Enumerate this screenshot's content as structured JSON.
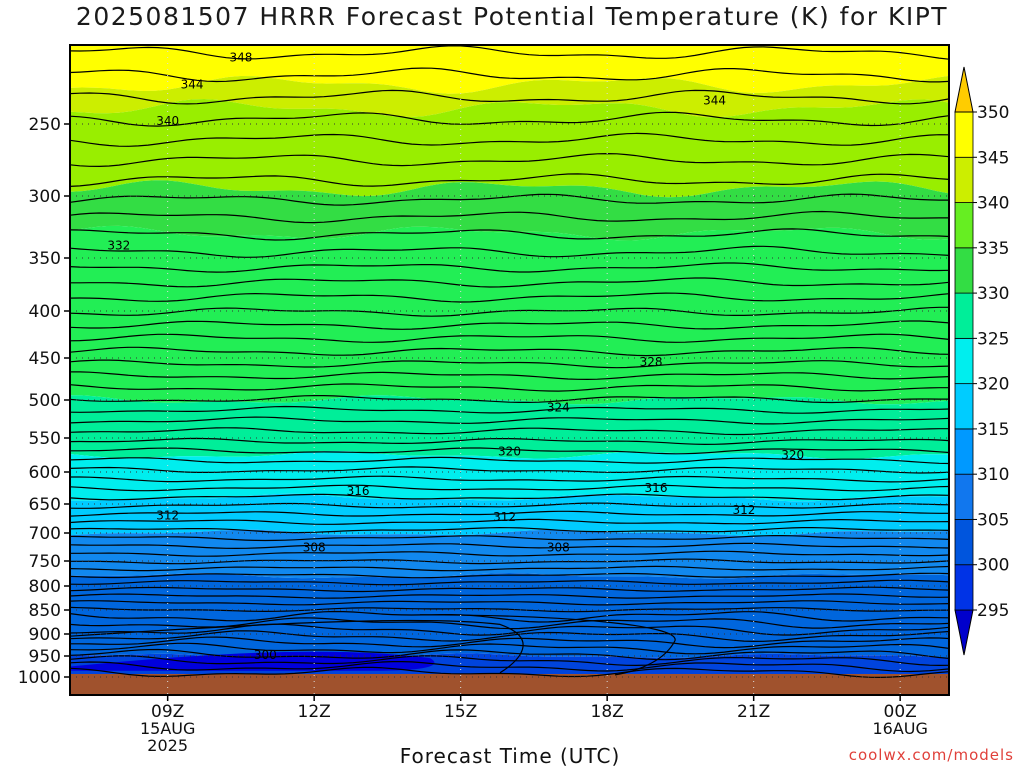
{
  "page": {
    "title": "2025081507 HRRR Forecast Potential Temperature (K) for KIPT",
    "xlabel": "Forecast Time (UTC)",
    "credit": "coolwx.com/models"
  },
  "chart_data": {
    "type": "heatmap",
    "title": "2025081507 HRRR Forecast Potential Temperature (K) for KIPT",
    "xlabel": "Forecast Time (UTC)",
    "ylabel": "",
    "x_range_hours": [
      7,
      25
    ],
    "y_range": [
      200,
      1000
    ],
    "y_ticks": [
      250,
      300,
      350,
      400,
      450,
      500,
      550,
      600,
      650,
      700,
      750,
      800,
      850,
      900,
      950,
      1000
    ],
    "x_ticks": [
      {
        "hour": 9,
        "lines": [
          "09Z",
          "15AUG",
          "2025"
        ]
      },
      {
        "hour": 12,
        "lines": [
          "12Z"
        ]
      },
      {
        "hour": 15,
        "lines": [
          "15Z"
        ]
      },
      {
        "hour": 18,
        "lines": [
          "18Z"
        ]
      },
      {
        "hour": 21,
        "lines": [
          "21Z"
        ]
      },
      {
        "hour": 24,
        "lines": [
          "00Z",
          "16AUG"
        ]
      }
    ],
    "colorbar": {
      "levels": [
        295,
        300,
        305,
        310,
        315,
        320,
        325,
        330,
        335,
        340,
        345,
        350
      ],
      "labels": [
        "295",
        "300",
        "305",
        "310",
        "315",
        "320",
        "325",
        "330",
        "335",
        "340",
        "345",
        "350"
      ],
      "colors": [
        "#0000cc",
        "#0033e6",
        "#0055dd",
        "#1177ee",
        "#0099ff",
        "#00ccff",
        "#00eeee",
        "#00ee99",
        "#33dd44",
        "#66ee22",
        "#ccee00",
        "#ffff00",
        "#ffcc00"
      ]
    },
    "fill_bands": [
      {
        "theta": 350,
        "color": "#ffff00",
        "level_top": 200,
        "level_bottom": 225
      },
      {
        "theta": 345,
        "color": "#ccee00",
        "level_top": 225,
        "level_bottom": 240
      },
      {
        "theta": 340,
        "color": "#99ee00",
        "level_top": 240,
        "level_bottom": 295
      },
      {
        "theta": 335,
        "color": "#33dd44",
        "level_top": 295,
        "level_bottom": 330
      },
      {
        "theta": 330,
        "color": "#22ee55",
        "level_top": 330,
        "level_bottom": 500
      },
      {
        "theta": 325,
        "color": "#00ee99",
        "level_top": 500,
        "level_bottom": 575
      },
      {
        "theta": 320,
        "color": "#00eeee",
        "level_top": 575,
        "level_bottom": 640
      },
      {
        "theta": 315,
        "color": "#00ccff",
        "level_top": 640,
        "level_bottom": 700
      },
      {
        "theta": 310,
        "color": "#1188ee",
        "level_top": 700,
        "level_bottom": 780
      },
      {
        "theta": 305,
        "color": "#0066dd",
        "level_top": 780,
        "level_bottom": 950
      },
      {
        "theta": 300,
        "color": "#0044dd",
        "level_top": 950,
        "level_bottom": 1000
      }
    ],
    "ground_color": "#a0522d",
    "contour_labels": [
      {
        "value": "348",
        "hour": 10.5,
        "level": 208
      },
      {
        "value": "344",
        "hour": 9.5,
        "level": 225
      },
      {
        "value": "344",
        "hour": 20.2,
        "level": 235
      },
      {
        "value": "340",
        "hour": 9.0,
        "level": 248
      },
      {
        "value": "332",
        "hour": 8.0,
        "level": 340
      },
      {
        "value": "328",
        "hour": 18.9,
        "level": 455
      },
      {
        "value": "324",
        "hour": 17.0,
        "level": 510
      },
      {
        "value": "320",
        "hour": 16.0,
        "level": 570
      },
      {
        "value": "320",
        "hour": 21.8,
        "level": 575
      },
      {
        "value": "316",
        "hour": 12.9,
        "level": 630
      },
      {
        "value": "316",
        "hour": 19.0,
        "level": 625
      },
      {
        "value": "312",
        "hour": 9.0,
        "level": 670
      },
      {
        "value": "312",
        "hour": 15.9,
        "level": 672
      },
      {
        "value": "312",
        "hour": 20.8,
        "level": 660
      },
      {
        "value": "308",
        "hour": 12.0,
        "level": 726
      },
      {
        "value": "308",
        "hour": 17.0,
        "level": 726
      },
      {
        "value": "300",
        "hour": 11.0,
        "level": 948
      }
    ]
  }
}
